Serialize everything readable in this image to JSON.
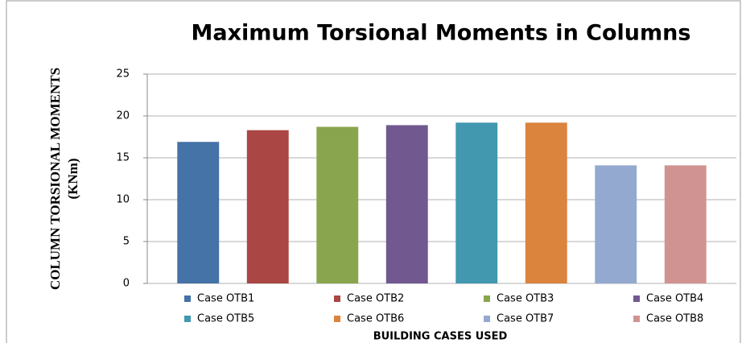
{
  "chart_data": {
    "type": "bar",
    "title": "Maximum Torsional Moments in Columns",
    "y_label": [
      "COLUMN TORSIONAL MOMENTS",
      "(KNm)"
    ],
    "x_label": "BUILDING CASES USED",
    "categories": [
      null
    ],
    "series": [
      {
        "name": "Case OTB1",
        "color": "#4572a7",
        "values": [
          16.9
        ]
      },
      {
        "name": "Case OTB2",
        "color": "#aa4643",
        "values": [
          18.3
        ]
      },
      {
        "name": "Case OTB3",
        "color": "#89a54e",
        "values": [
          18.7
        ]
      },
      {
        "name": "Case OTB4",
        "color": "#71588f",
        "values": [
          18.9
        ]
      },
      {
        "name": "Case OTB5",
        "color": "#4198af",
        "values": [
          19.2
        ]
      },
      {
        "name": "Case OTB6",
        "color": "#db843d",
        "values": [
          19.2
        ]
      },
      {
        "name": "Case OTB7",
        "color": "#93a9cf",
        "values": [
          14.1
        ]
      },
      {
        "name": "Case OTB8",
        "color": "#d19392",
        "values": [
          14.1
        ]
      }
    ],
    "ylim": [
      0,
      25
    ],
    "yticks": [
      0,
      5,
      10,
      15,
      20,
      25
    ],
    "grid": true,
    "legend": "bottom"
  }
}
